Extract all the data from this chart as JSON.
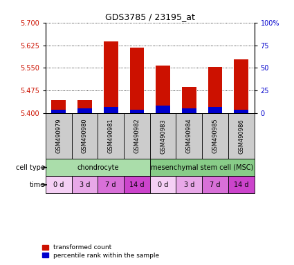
{
  "title": "GDS3785 / 23195_at",
  "samples": [
    "GSM490979",
    "GSM490980",
    "GSM490981",
    "GSM490982",
    "GSM490983",
    "GSM490984",
    "GSM490985",
    "GSM490986"
  ],
  "red_values": [
    5.445,
    5.443,
    5.638,
    5.618,
    5.558,
    5.488,
    5.553,
    5.578
  ],
  "blue_values": [
    5.413,
    5.416,
    5.42,
    5.413,
    5.425,
    5.416,
    5.42,
    5.413
  ],
  "ylim_left": [
    5.4,
    5.7
  ],
  "yticks_left": [
    5.4,
    5.475,
    5.55,
    5.625,
    5.7
  ],
  "yticks_right": [
    0,
    25,
    50,
    75,
    100
  ],
  "ytick_labels_right": [
    "0",
    "25",
    "50",
    "75",
    "100%"
  ],
  "cell_type_groups": [
    {
      "label": "chondrocyte",
      "span": [
        0,
        4
      ],
      "color": "#aaddaa"
    },
    {
      "label": "mesenchymal stem cell (MSC)",
      "span": [
        4,
        8
      ],
      "color": "#88cc88"
    }
  ],
  "time_labels": [
    "0 d",
    "3 d",
    "7 d",
    "14 d",
    "0 d",
    "3 d",
    "7 d",
    "14 d"
  ],
  "time_colors": [
    "#f5d0f5",
    "#e8a8e8",
    "#d870d8",
    "#cc44cc",
    "#f5d0f5",
    "#e8a8e8",
    "#d870d8",
    "#cc44cc"
  ],
  "bar_width": 0.55,
  "base_value": 5.4,
  "legend_red": "transformed count",
  "legend_blue": "percentile rank within the sample",
  "red_color": "#cc1100",
  "blue_color": "#0000cc",
  "background_color": "#ffffff",
  "tick_label_color_left": "#cc1100",
  "tick_label_color_right": "#0000cc",
  "gray_box_color": "#cccccc",
  "label_fontsize": 7,
  "tick_fontsize": 7,
  "title_fontsize": 9
}
